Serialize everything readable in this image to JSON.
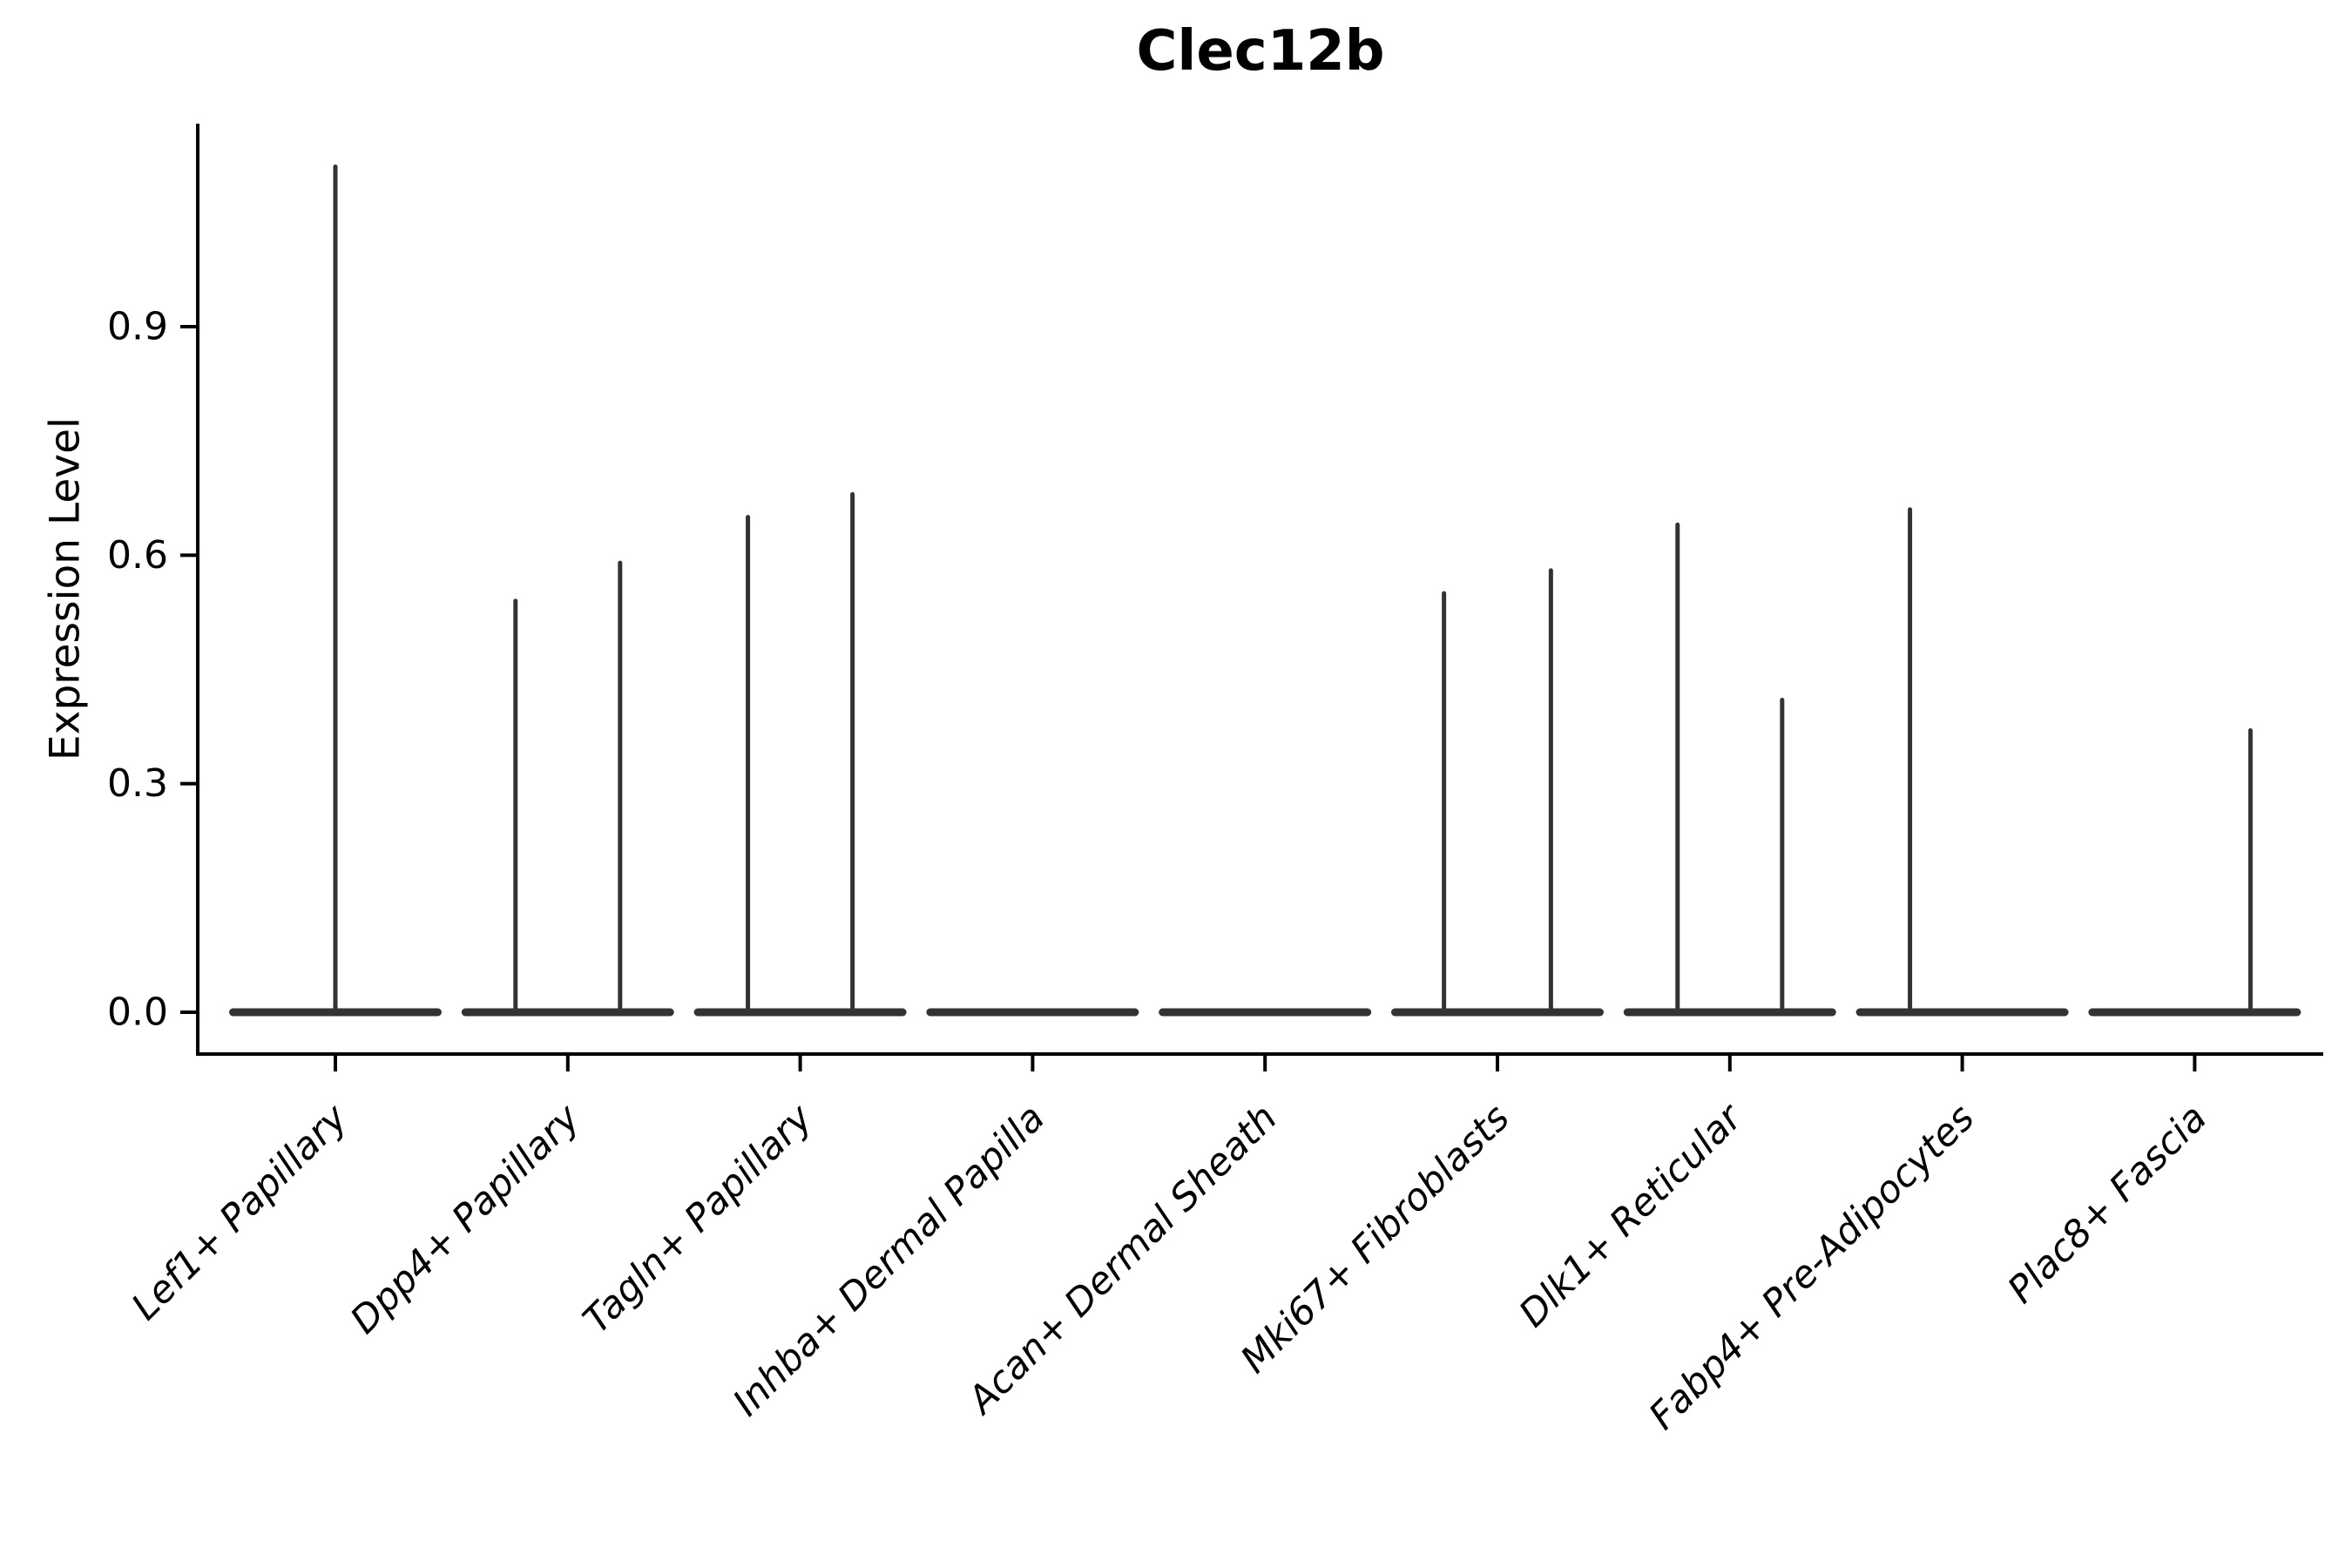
{
  "chart_data": {
    "type": "violin",
    "title": "Clec12b",
    "ylabel": "Expression Level",
    "xlabel": "",
    "ylim": [
      -0.055,
      1.17
    ],
    "grid": false,
    "legend": "none",
    "yticks": [
      0.0,
      0.3,
      0.6,
      0.9
    ],
    "ytick_labels": [
      "0.0",
      "0.3",
      "0.6",
      "0.9"
    ],
    "categories": [
      "Lef1+ Papillary",
      "Dpp4+ Papillary",
      "Tagln+ Papillary",
      "Inhba+ Dermal Papilla",
      "Acan+ Dermal Sheath",
      "Mki67+ Fibroblasts",
      "Dlk1+ Reticular",
      "Fabp4+ Pre-Adipocytes",
      "Plac8+ Fascia"
    ],
    "violins": [
      {
        "category": "Lef1+ Papillary",
        "base_at_zero": true,
        "spikes": [
          {
            "offset_frac": 0.0,
            "max": 1.11
          }
        ]
      },
      {
        "category": "Dpp4+ Papillary",
        "base_at_zero": true,
        "spikes": [
          {
            "offset_frac": -0.225,
            "max": 0.54
          },
          {
            "offset_frac": 0.225,
            "max": 0.59
          }
        ]
      },
      {
        "category": "Tagln+ Papillary",
        "base_at_zero": true,
        "spikes": [
          {
            "offset_frac": -0.225,
            "max": 0.65
          },
          {
            "offset_frac": 0.225,
            "max": 0.68
          }
        ]
      },
      {
        "category": "Inhba+ Dermal Papilla",
        "base_at_zero": true,
        "spikes": []
      },
      {
        "category": "Acan+ Dermal Sheath",
        "base_at_zero": true,
        "spikes": []
      },
      {
        "category": "Mki67+ Fibroblasts",
        "base_at_zero": true,
        "spikes": [
          {
            "offset_frac": -0.23,
            "max": 0.55
          },
          {
            "offset_frac": 0.23,
            "max": 0.58
          }
        ]
      },
      {
        "category": "Dlk1+ Reticular",
        "base_at_zero": true,
        "spikes": [
          {
            "offset_frac": -0.225,
            "max": 0.64
          },
          {
            "offset_frac": 0.225,
            "max": 0.41
          }
        ]
      },
      {
        "category": "Fabp4+ Pre-Adipocytes",
        "base_at_zero": true,
        "spikes": [
          {
            "offset_frac": -0.225,
            "max": 0.66
          }
        ]
      },
      {
        "category": "Plac8+ Fascia",
        "base_at_zero": true,
        "spikes": [
          {
            "offset_frac": 0.24,
            "max": 0.37
          }
        ]
      }
    ],
    "colors": {
      "violin_stroke": "#333333",
      "axis": "#000000",
      "text": "#000000",
      "background": "#ffffff"
    }
  }
}
